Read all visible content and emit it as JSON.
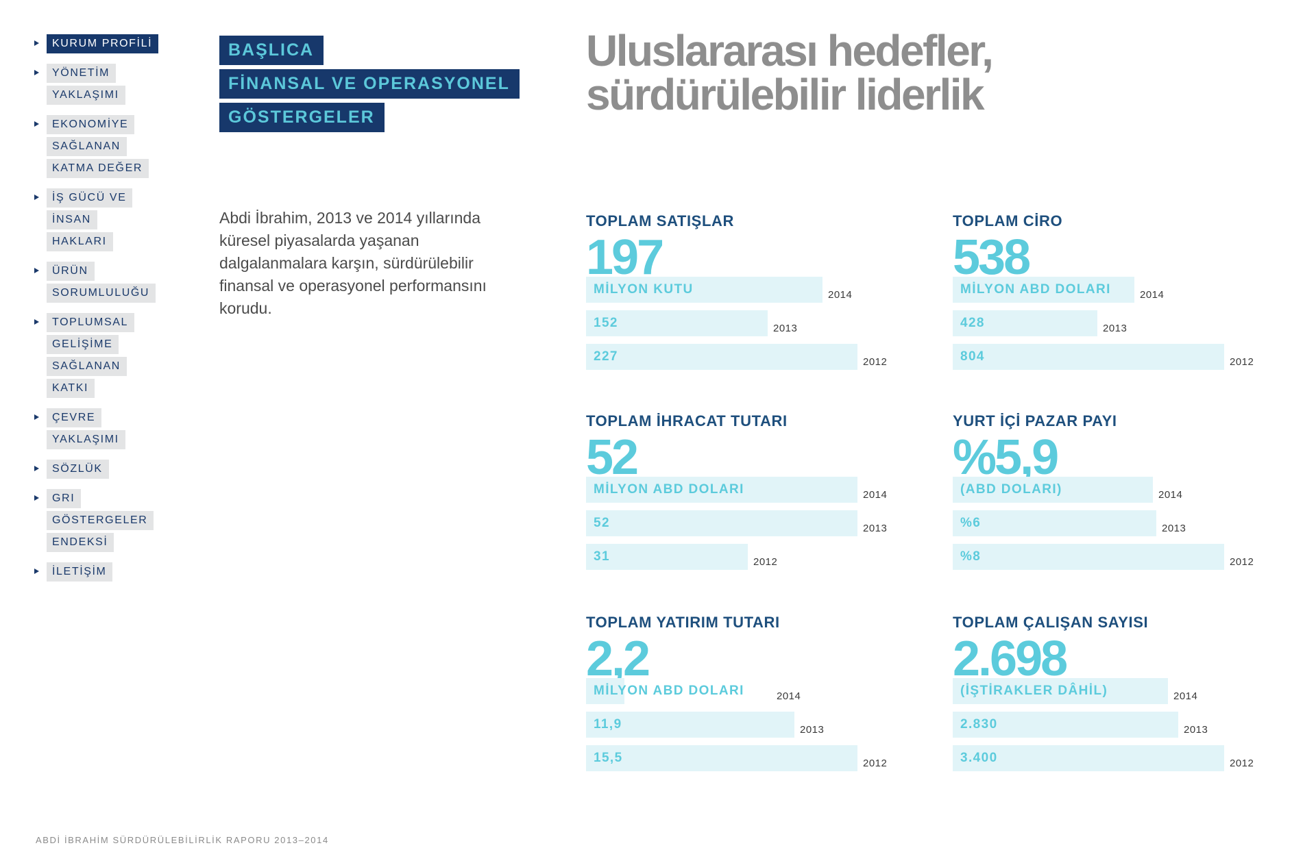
{
  "nav": [
    {
      "lines": [
        "KURUM PROFİLİ"
      ],
      "active": true
    },
    {
      "lines": [
        "YÖNETİM",
        "YAKLAŞIMI"
      ]
    },
    {
      "lines": [
        "EKONOMİYE",
        "SAĞLANAN",
        "KATMA DEĞER"
      ]
    },
    {
      "lines": [
        "İŞ GÜCÜ VE",
        "İNSAN",
        "HAKLARI"
      ]
    },
    {
      "lines": [
        "ÜRÜN",
        "SORUMLULUĞU"
      ]
    },
    {
      "lines": [
        "TOPLUMSAL",
        "GELİŞİME",
        "SAĞLANAN",
        "KATKI"
      ]
    },
    {
      "lines": [
        "ÇEVRE",
        "YAKLAŞIMI"
      ]
    },
    {
      "lines": [
        "SÖZLÜK"
      ]
    },
    {
      "lines": [
        "GRI",
        "GÖSTERGELER",
        "ENDEKSİ"
      ]
    },
    {
      "lines": [
        "İLETİŞİM"
      ]
    }
  ],
  "heading": [
    "BAŞLICA",
    "FİNANSAL VE OPERASYONEL",
    "GÖSTERGELER"
  ],
  "title": [
    "Uluslararası hedefler,",
    "sürdürülebilir liderlik"
  ],
  "intro": "Abdi İbrahim, 2013 ve 2014 yıllarında küresel piyasalarda yaşanan dalgalanmalara karşın, sürdürülebilir finansal ve operasyonel performansını korudu.",
  "metrics": [
    {
      "label": "TOPLAM SATIŞLAR",
      "value": "197",
      "bars": [
        {
          "text": "MİLYON KUTU",
          "year": "2014",
          "fraction": 0.87
        },
        {
          "text": "152",
          "year": "2013",
          "fraction": 0.67
        },
        {
          "text": "227",
          "year": "2012",
          "fraction": 1.0
        }
      ]
    },
    {
      "label": "TOPLAM CİRO",
      "value": "538",
      "bars": [
        {
          "text": "MİLYON ABD DOLARI",
          "year": "2014",
          "fraction": 0.669
        },
        {
          "text": "428",
          "year": "2013",
          "fraction": 0.532
        },
        {
          "text": "804",
          "year": "2012",
          "fraction": 1.0
        }
      ]
    },
    {
      "label": "TOPLAM İHRACAT TUTARI",
      "value": "52",
      "bars": [
        {
          "text": "MİLYON ABD DOLARI",
          "year": "2014",
          "fraction": 1.0
        },
        {
          "text": "52",
          "year": "2013",
          "fraction": 1.0
        },
        {
          "text": "31",
          "year": "2012",
          "fraction": 0.596
        }
      ]
    },
    {
      "label": "YURT İÇİ PAZAR PAYI",
      "value": "%5,9",
      "bars": [
        {
          "text": "(ABD DOLARI)",
          "year": "2014",
          "fraction": 0.737
        },
        {
          "text": "%6",
          "year": "2013",
          "fraction": 0.75
        },
        {
          "text": "%8",
          "year": "2012",
          "fraction": 1.0
        }
      ]
    },
    {
      "label": "TOPLAM YATIRIM TUTARI",
      "value": "2,2",
      "bars": [
        {
          "text": "MİLYON ABD DOLARI",
          "year": "2014",
          "fraction": 0.142
        },
        {
          "text": "11,9",
          "year": "2013",
          "fraction": 0.768
        },
        {
          "text": "15,5",
          "year": "2012",
          "fraction": 1.0
        }
      ]
    },
    {
      "label": "TOPLAM ÇALIŞAN SAYISI",
      "value": "2.698",
      "bars": [
        {
          "text": "(İŞTİRAKLER DÂHİL)",
          "year": "2014",
          "fraction": 0.794
        },
        {
          "text": "2.830",
          "year": "2013",
          "fraction": 0.832
        },
        {
          "text": "3.400",
          "year": "2012",
          "fraction": 1.0
        }
      ]
    }
  ],
  "footer": "ABDİ İBRAHİM SÜRDÜRÜLEBİLİRLİK RAPORU 2013–2014"
}
